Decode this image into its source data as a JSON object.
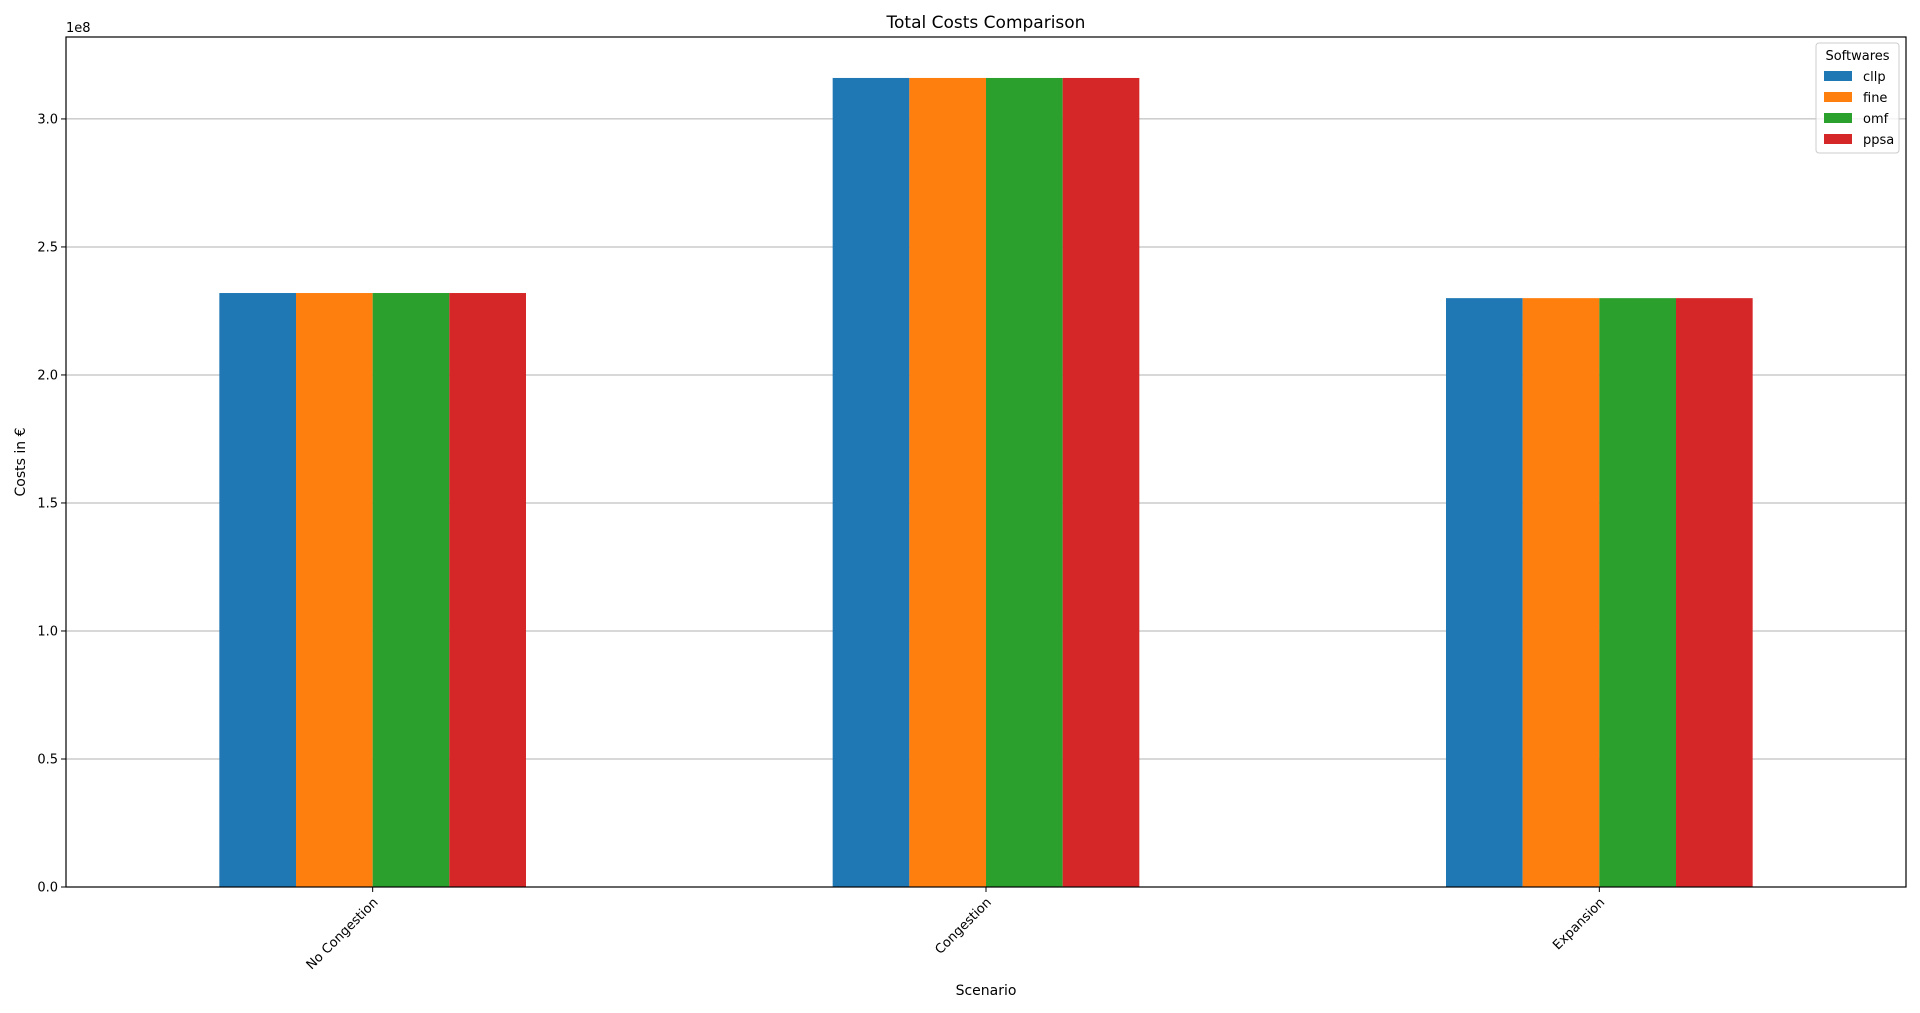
{
  "chart_data": {
    "type": "bar",
    "title": "Total Costs Comparison",
    "xlabel": "Scenario",
    "ylabel": "Costs in €",
    "offset_label": "1e8",
    "categories": [
      "No Congestion",
      "Congestion",
      "Expansion"
    ],
    "series": [
      {
        "name": "cllp",
        "color": "#1f77b4",
        "values": [
          2.32,
          3.16,
          2.3
        ]
      },
      {
        "name": "fine",
        "color": "#ff7f0e",
        "values": [
          2.32,
          3.16,
          2.3
        ]
      },
      {
        "name": "omf",
        "color": "#2ca02c",
        "values": [
          2.32,
          3.16,
          2.3
        ]
      },
      {
        "name": "ppsa",
        "color": "#d62728",
        "values": [
          2.32,
          3.16,
          2.3
        ]
      }
    ],
    "ylim": [
      0,
      3.32
    ],
    "yticks": [
      "0.0",
      "0.5",
      "1.0",
      "1.5",
      "2.0",
      "2.5",
      "3.0"
    ],
    "ytick_values": [
      0,
      0.5,
      1.0,
      1.5,
      2.0,
      2.5,
      3.0
    ],
    "grid": "horizontal",
    "legend": {
      "title": "Softwares",
      "position": "top-right"
    },
    "xtick_rotation": "45deg"
  }
}
